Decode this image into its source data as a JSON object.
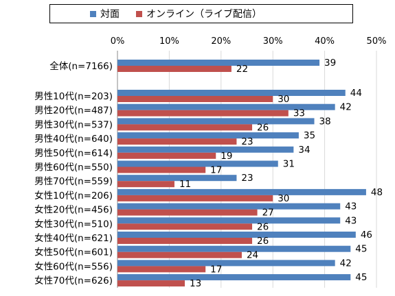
{
  "legend": {
    "series_0": "対面",
    "series_1": "オンライン（ライブ配信）"
  },
  "chart_data": {
    "type": "bar",
    "orientation": "horizontal",
    "xlim": [
      0,
      50
    ],
    "x_ticks": [
      "0%",
      "10%",
      "20%",
      "30%",
      "40%",
      "50%"
    ],
    "grid": true,
    "legend_position": "top",
    "categories": [
      "全体(n=7166)",
      "男性10代(n=203)",
      "男性20代(n=487)",
      "男性30代(n=537)",
      "男性40代(n=640)",
      "男性50代(n=614)",
      "男性60代(n=550)",
      "男性70代(n=559)",
      "女性10代(n=206)",
      "女性20代(n=456)",
      "女性30代(n=510)",
      "女性40代(n=621)",
      "女性50代(n=601)",
      "女性60代(n=556)",
      "女性70代(n=626)"
    ],
    "series": [
      {
        "name": "対面",
        "color": "#4f81bd",
        "values": [
          39,
          44,
          42,
          38,
          35,
          34,
          31,
          23,
          48,
          43,
          43,
          46,
          45,
          42,
          45
        ]
      },
      {
        "name": "オンライン（ライブ配信）",
        "color": "#c0504d",
        "values": [
          22,
          30,
          33,
          26,
          23,
          19,
          17,
          11,
          30,
          27,
          26,
          26,
          24,
          17,
          13
        ]
      }
    ]
  }
}
